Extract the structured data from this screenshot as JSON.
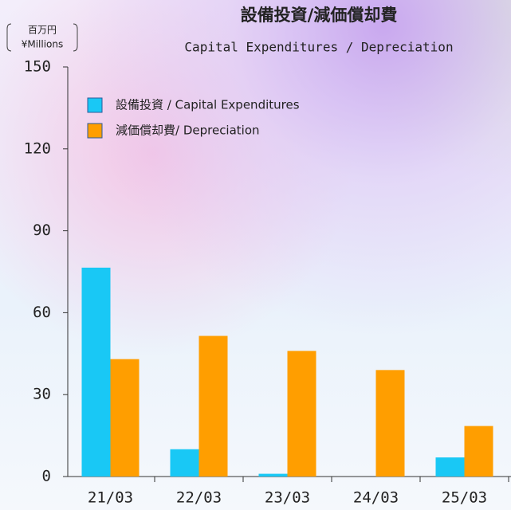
{
  "chart_data": {
    "type": "bar",
    "title": "設備投資/減価償却費",
    "subtitle": "Capital Expenditures / Depreciation",
    "y_axis_label_ja": "百万円",
    "y_axis_label_en": "¥Millions",
    "categories": [
      "21/03",
      "22/03",
      "23/03",
      "24/03",
      "25/03"
    ],
    "series": [
      {
        "name": "設備投資 / Capital Expenditures",
        "color": "#19c8f5",
        "values": [
          76.5,
          10,
          1,
          0,
          7
        ]
      },
      {
        "name": "減価償却費/ Depreciation",
        "color": "#ff9e00",
        "values": [
          43,
          51.5,
          46,
          39,
          18.5
        ]
      }
    ],
    "ylim": [
      0,
      150
    ],
    "yticks": [
      0,
      30,
      60,
      90,
      120,
      150
    ],
    "legend": "top-left"
  }
}
